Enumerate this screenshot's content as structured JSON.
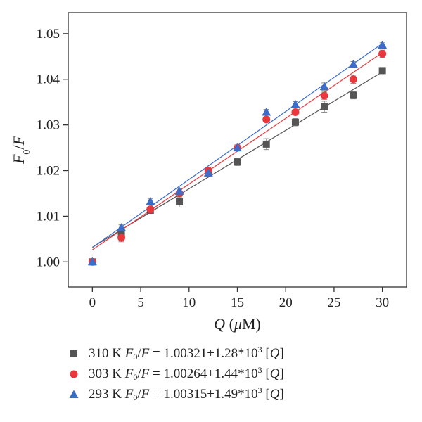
{
  "chart_data": {
    "type": "scatter",
    "ylabel": "F0/F",
    "xlabel": "Q (μM)",
    "x": [
      0,
      3,
      6,
      9,
      12,
      15,
      18,
      21,
      24,
      27,
      30
    ],
    "xlim": [
      -2.5,
      32.5
    ],
    "ylim": [
      0.9945,
      1.0546
    ],
    "xticks": [
      0,
      5,
      10,
      15,
      20,
      25,
      30
    ],
    "yticks": [
      1.0,
      1.01,
      1.02,
      1.03,
      1.04,
      1.05
    ],
    "xtick_labels": [
      "0",
      "5",
      "10",
      "15",
      "20",
      "25",
      "30"
    ],
    "ytick_labels": [
      "1.00",
      "1.01",
      "1.02",
      "1.03",
      "1.04",
      "1.05"
    ],
    "series": [
      {
        "name": "310 K",
        "marker": "square",
        "color": "#555555",
        "values": [
          1.0,
          1.0063,
          1.0113,
          1.0132,
          1.0195,
          1.0219,
          1.0258,
          1.0306,
          1.034,
          1.0365,
          1.0419
        ],
        "errors": [
          0.0005,
          0.0008,
          0.0006,
          0.0012,
          0.0007,
          0.0008,
          0.0012,
          0.0008,
          0.0012,
          0.0008,
          0.0006
        ],
        "fit": {
          "intercept": 1.00321,
          "slope": 0.00128
        },
        "legend": {
          "temp": "310 K",
          "lhs": "F",
          "sub": "0",
          "rhs_tail": "/",
          "var": "F",
          "eq": " = 1.00321+1.28*10",
          "exp": "3",
          "bracket": "[Q]"
        }
      },
      {
        "name": "303 K",
        "marker": "circle",
        "color": "#e8383d",
        "values": [
          1.0,
          1.0053,
          1.0115,
          1.015,
          1.02,
          1.025,
          1.0312,
          1.0328,
          1.0364,
          1.04,
          1.0456
        ],
        "errors": [
          0.0005,
          0.0009,
          0.0006,
          0.0008,
          0.0007,
          0.0006,
          0.0005,
          0.0006,
          0.0008,
          0.0009,
          0.0008
        ],
        "fit": {
          "intercept": 1.00264,
          "slope": 0.00144
        },
        "legend": {
          "temp": "303 K",
          "lhs": "F",
          "sub": "0",
          "rhs_tail": "/",
          "var": "F",
          "eq": " = 1.00264+1.44*10",
          "exp": "3",
          "bracket": "[Q]"
        }
      },
      {
        "name": "293 K",
        "marker": "triangle",
        "color": "#3a6cc8",
        "values": [
          1.0,
          1.0075,
          1.0132,
          1.0155,
          1.0195,
          1.025,
          1.0328,
          1.0345,
          1.0384,
          1.0433,
          1.0475
        ],
        "errors": [
          0.0005,
          0.0006,
          0.0006,
          0.0006,
          0.0006,
          0.0006,
          0.0006,
          0.0006,
          0.0008,
          0.0006,
          0.0005
        ],
        "fit": {
          "intercept": 1.00315,
          "slope": 0.00149
        },
        "legend": {
          "temp": "293 K",
          "lhs": "F",
          "sub": "0",
          "rhs_tail": "/",
          "var": "F",
          "eq": " = 1.00315+1.49*10",
          "exp": "3",
          "bracket": "[Q]"
        }
      }
    ]
  }
}
